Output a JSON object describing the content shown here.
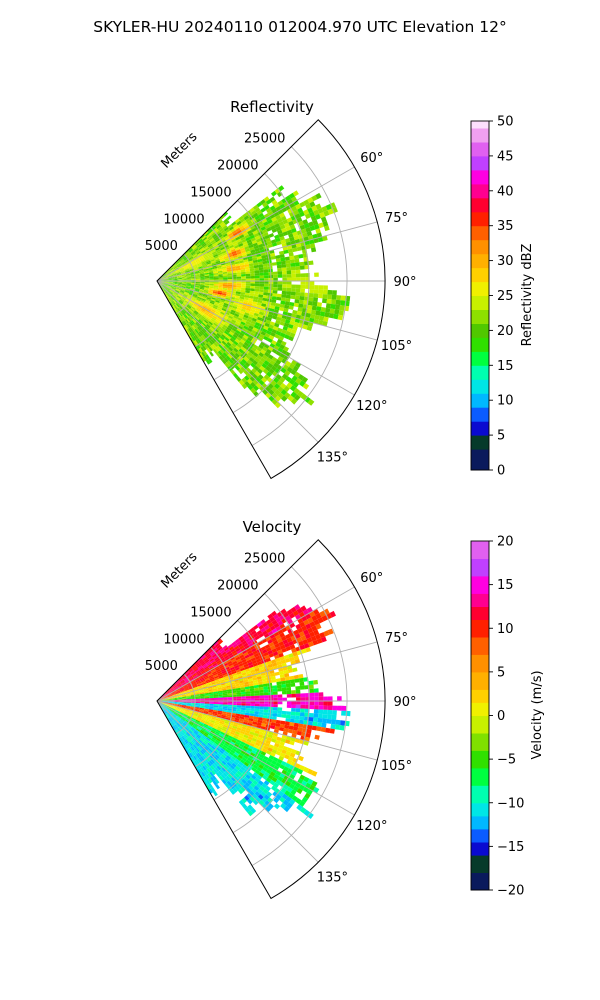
{
  "suptitle": "SKYLER-HU  20240110  012004.970 UTC Elevation 12°",
  "chart_data": [
    {
      "type": "heatmap",
      "subtype": "polar-sector-ppi",
      "title": "Reflectivity",
      "radial_axis_label": "Meters",
      "radial_ticks": [
        5000,
        10000,
        15000,
        20000,
        25000
      ],
      "radial_tick_labels": [
        "5000",
        "10000",
        "15000",
        "20000",
        "25000"
      ],
      "rlim": [
        0,
        30000
      ],
      "azimuth_range_deg": [
        45,
        150
      ],
      "azimuth_ticks": [
        60,
        75,
        90,
        105,
        120,
        135
      ],
      "azimuth_tick_labels": [
        "60°",
        "75°",
        "90°",
        "105°",
        "120°",
        "135°"
      ],
      "grid": true,
      "colorbar": {
        "label": "Reflectivity dBZ",
        "vmin": 0,
        "vmax": 50,
        "ticks": [
          0,
          5,
          10,
          15,
          20,
          25,
          30,
          35,
          40,
          45,
          50
        ],
        "tick_labels": [
          "0",
          "5",
          "10",
          "15",
          "20",
          "25",
          "30",
          "35",
          "40",
          "45",
          "50"
        ],
        "colormap": [
          [
            0,
            "#0a1a5c"
          ],
          [
            3,
            "#063a2a"
          ],
          [
            5,
            "#0a0ad0"
          ],
          [
            7,
            "#0a5cff"
          ],
          [
            9,
            "#00b8ff"
          ],
          [
            11,
            "#00e6e6"
          ],
          [
            13,
            "#00ffb0"
          ],
          [
            15,
            "#00ff40"
          ],
          [
            17,
            "#30e000"
          ],
          [
            19,
            "#50c800"
          ],
          [
            21,
            "#8ee000"
          ],
          [
            23,
            "#c8f000"
          ],
          [
            25,
            "#f0f000"
          ],
          [
            27,
            "#ffd000"
          ],
          [
            29,
            "#ffb000"
          ],
          [
            31,
            "#ff9000"
          ],
          [
            33,
            "#ff6000"
          ],
          [
            35,
            "#ff2000"
          ],
          [
            37,
            "#ff0030"
          ],
          [
            39,
            "#ff0090"
          ],
          [
            41,
            "#ff00e0"
          ],
          [
            43,
            "#c040ff"
          ],
          [
            45,
            "#e060f0"
          ],
          [
            47,
            "#f0a0f0"
          ],
          [
            49,
            "#fce0fc"
          ]
        ]
      },
      "field": {
        "background_value": 21,
        "variability": 3,
        "coverage_far_limit_m": 26000,
        "features": [
          {
            "az": 58,
            "r": 12000,
            "value": 35,
            "width_deg": 2.5,
            "width_m": 1500
          },
          {
            "az": 70,
            "r": 10500,
            "value": 35,
            "width_deg": 3,
            "width_m": 1500
          },
          {
            "az": 80,
            "r": 10000,
            "value": 31,
            "width_deg": 3,
            "width_m": 2000
          },
          {
            "az": 93,
            "r": 9200,
            "value": 32,
            "width_deg": 3,
            "width_m": 2000
          },
          {
            "az": 100,
            "r": 8000,
            "value": 36,
            "width_deg": 3,
            "width_m": 1500
          },
          {
            "az": 105,
            "r": 12000,
            "value": 28,
            "width_deg": 5,
            "width_m": 2000
          },
          {
            "az": 90,
            "r": 20000,
            "value": 25,
            "width_deg": 5,
            "width_m": 3000
          },
          {
            "az": 120,
            "r": 7000,
            "value": 30,
            "width_deg": 6,
            "width_m": 3000
          },
          {
            "az": 63,
            "r": 5000,
            "value": 27,
            "width_deg": 6,
            "width_m": 3000
          }
        ]
      }
    },
    {
      "type": "heatmap",
      "subtype": "polar-sector-ppi",
      "title": "Velocity",
      "radial_axis_label": "Meters",
      "radial_ticks": [
        5000,
        10000,
        15000,
        20000,
        25000
      ],
      "radial_tick_labels": [
        "5000",
        "10000",
        "15000",
        "20000",
        "25000"
      ],
      "rlim": [
        0,
        30000
      ],
      "azimuth_range_deg": [
        45,
        150
      ],
      "azimuth_ticks": [
        60,
        75,
        90,
        105,
        120,
        135
      ],
      "azimuth_tick_labels": [
        "60°",
        "75°",
        "90°",
        "105°",
        "120°",
        "135°"
      ],
      "grid": true,
      "colorbar": {
        "label": "Velocity (m/s)",
        "vmin": -20,
        "vmax": 20,
        "ticks": [
          -20,
          -15,
          -10,
          -5,
          0,
          5,
          10,
          15,
          20
        ],
        "tick_labels": [
          "−20",
          "−15",
          "−10",
          "−5",
          "0",
          "5",
          "10",
          "15",
          "20"
        ],
        "colormap": [
          [
            -20,
            "#0a1a5c"
          ],
          [
            -18,
            "#063a2a"
          ],
          [
            -16,
            "#0a0ad0"
          ],
          [
            -14.5,
            "#0a5cff"
          ],
          [
            -13,
            "#00b8ff"
          ],
          [
            -11.5,
            "#00e6e6"
          ],
          [
            -10,
            "#00ffb0"
          ],
          [
            -8,
            "#00ff40"
          ],
          [
            -6,
            "#30e000"
          ],
          [
            -4,
            "#80e000"
          ],
          [
            -2,
            "#c8f000"
          ],
          [
            0,
            "#f0f000"
          ],
          [
            1.5,
            "#ffd000"
          ],
          [
            3,
            "#ffb000"
          ],
          [
            5,
            "#ff9000"
          ],
          [
            7,
            "#ff6000"
          ],
          [
            9,
            "#ff2000"
          ],
          [
            11,
            "#ff0030"
          ],
          [
            12.5,
            "#ff0090"
          ],
          [
            14,
            "#ff00e0"
          ],
          [
            16,
            "#c040ff"
          ],
          [
            18,
            "#e060f0"
          ],
          [
            20,
            "#fce0fc"
          ]
        ]
      },
      "field": {
        "bands": [
          {
            "az_from": 45,
            "az_to": 60,
            "value": 12
          },
          {
            "az_from": 60,
            "az_to": 70,
            "value": 10
          },
          {
            "az_from": 70,
            "az_to": 80,
            "value": 2
          },
          {
            "az_from": 80,
            "az_to": 86,
            "value": -5
          },
          {
            "az_from": 86,
            "az_to": 92,
            "value": 14
          },
          {
            "az_from": 92,
            "az_to": 98,
            "value": -11
          },
          {
            "az_from": 98,
            "az_to": 105,
            "value": 9
          },
          {
            "az_from": 105,
            "az_to": 115,
            "value": 1
          },
          {
            "az_from": 115,
            "az_to": 125,
            "value": -7
          },
          {
            "az_from": 125,
            "az_to": 150,
            "value": -11
          }
        ],
        "coverage_far_limit_m": 26000
      }
    }
  ]
}
